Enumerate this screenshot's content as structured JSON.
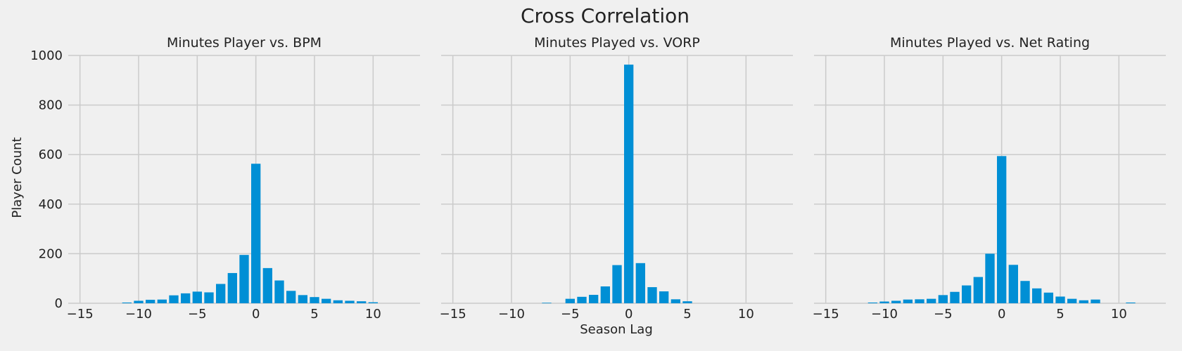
{
  "figure": {
    "title": "Cross Correlation",
    "xlabel": "Season Lag",
    "ylabel": "Player Count"
  },
  "chart_data": [
    {
      "type": "bar",
      "title": "Minutes Player vs. BPM",
      "xlabel": "",
      "ylabel": "Player Count",
      "xlim": [
        -16,
        14
      ],
      "ylim": [
        0,
        1000
      ],
      "xticks": [
        -15,
        -10,
        -5,
        0,
        5,
        10
      ],
      "yticks": [
        0,
        200,
        400,
        600,
        800,
        1000
      ],
      "grid": true,
      "color": "#008fd5",
      "x": [
        -11,
        -10,
        -9,
        -8,
        -7,
        -6,
        -5,
        -4,
        -3,
        -2,
        -1,
        0,
        1,
        2,
        3,
        4,
        5,
        6,
        7,
        8,
        9,
        10
      ],
      "values": [
        3,
        10,
        14,
        15,
        32,
        40,
        47,
        44,
        78,
        122,
        195,
        563,
        142,
        92,
        50,
        33,
        25,
        18,
        12,
        10,
        8,
        4
      ]
    },
    {
      "type": "bar",
      "title": "Minutes Played vs. VORP",
      "xlabel": "Season Lag",
      "ylabel": "",
      "xlim": [
        -16,
        14
      ],
      "ylim": [
        0,
        1000
      ],
      "xticks": [
        -15,
        -10,
        -5,
        0,
        5,
        10
      ],
      "yticks": [
        0,
        200,
        400,
        600,
        800,
        1000
      ],
      "grid": true,
      "color": "#008fd5",
      "x": [
        -7,
        -5,
        -4,
        -3,
        -2,
        -1,
        0,
        1,
        2,
        3,
        4,
        5
      ],
      "values": [
        2,
        18,
        26,
        34,
        68,
        154,
        963,
        162,
        65,
        48,
        16,
        8
      ]
    },
    {
      "type": "bar",
      "title": "Minutes Played vs. Net Rating",
      "xlabel": "",
      "ylabel": "",
      "xlim": [
        -16,
        14
      ],
      "ylim": [
        0,
        1000
      ],
      "xticks": [
        -15,
        -10,
        -5,
        0,
        5,
        10
      ],
      "yticks": [
        0,
        200,
        400,
        600,
        800,
        1000
      ],
      "grid": true,
      "color": "#008fd5",
      "x": [
        -11,
        -10,
        -9,
        -8,
        -7,
        -6,
        -5,
        -4,
        -3,
        -2,
        -1,
        0,
        1,
        2,
        3,
        4,
        5,
        6,
        7,
        8,
        11
      ],
      "values": [
        3,
        7,
        10,
        15,
        16,
        18,
        33,
        46,
        72,
        106,
        200,
        594,
        155,
        90,
        60,
        43,
        27,
        18,
        12,
        15,
        3
      ]
    }
  ]
}
